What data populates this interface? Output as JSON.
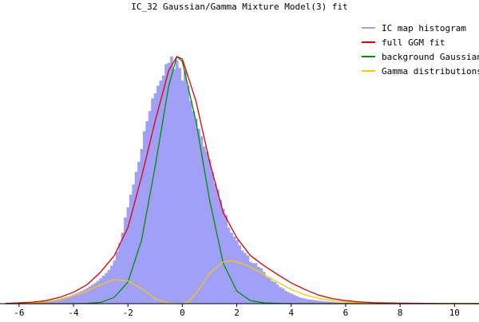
{
  "chart_data": {
    "type": "area",
    "title": "IC_32 Gaussian/Gamma Mixture Model(3) fit",
    "xlabel": "",
    "ylabel": "",
    "xlim": [
      -6.7,
      10.9
    ],
    "ylim": [
      0,
      1.0
    ],
    "x_ticks": [
      -6,
      -4,
      -2,
      0,
      2,
      4,
      6,
      8,
      10
    ],
    "x_tick_labels": [
      "-6",
      "-4",
      "-2",
      "0",
      "2",
      "4",
      "6",
      "8",
      "10"
    ],
    "legend_position": "top-right",
    "colors": {
      "histogram": "#a0a0f8",
      "full_fit": "#e00000",
      "background": "#009000",
      "gamma": "#f8c800",
      "axis": "#000000"
    },
    "series": [
      {
        "name": "IC map histogram",
        "kind": "histogram",
        "bin_width": 0.1,
        "x": [
          -6.3,
          -6.2,
          -6.1,
          -6.0,
          -5.9,
          -5.8,
          -5.7,
          -5.6,
          -5.5,
          -5.4,
          -5.3,
          -5.2,
          -5.1,
          -5.0,
          -4.9,
          -4.8,
          -4.7,
          -4.6,
          -4.5,
          -4.4,
          -4.3,
          -4.2,
          -4.1,
          -4.0,
          -3.9,
          -3.8,
          -3.7,
          -3.6,
          -3.5,
          -3.4,
          -3.3,
          -3.2,
          -3.1,
          -3.0,
          -2.9,
          -2.8,
          -2.7,
          -2.6,
          -2.5,
          -2.4,
          -2.3,
          -2.2,
          -2.1,
          -2.0,
          -1.9,
          -1.8,
          -1.7,
          -1.6,
          -1.5,
          -1.4,
          -1.3,
          -1.2,
          -1.1,
          -1.0,
          -0.9,
          -0.8,
          -0.7,
          -0.6,
          -0.5,
          -0.4,
          -0.3,
          -0.2,
          -0.1,
          0.0,
          0.1,
          0.2,
          0.3,
          0.4,
          0.5,
          0.6,
          0.7,
          0.8,
          0.9,
          1.0,
          1.1,
          1.2,
          1.3,
          1.4,
          1.5,
          1.6,
          1.7,
          1.8,
          1.9,
          2.0,
          2.1,
          2.2,
          2.3,
          2.4,
          2.5,
          2.6,
          2.7,
          2.8,
          2.9,
          3.0,
          3.1,
          3.2,
          3.3,
          3.4,
          3.5,
          3.6,
          3.7,
          3.8,
          3.9,
          4.0,
          4.1,
          4.2,
          4.3,
          4.4,
          4.5,
          4.6,
          4.7,
          4.8,
          4.9,
          5.0,
          5.1,
          5.2,
          5.3,
          5.4,
          5.5,
          5.6,
          5.7,
          5.8,
          5.9,
          6.0,
          6.1,
          6.2,
          6.3,
          6.4,
          6.5,
          6.6,
          6.7,
          6.8,
          6.9,
          7.0
        ],
        "values": [
          0.002,
          0.002,
          0.003,
          0.003,
          0.003,
          0.004,
          0.004,
          0.005,
          0.005,
          0.006,
          0.007,
          0.008,
          0.009,
          0.01,
          0.011,
          0.013,
          0.015,
          0.017,
          0.019,
          0.022,
          0.025,
          0.028,
          0.032,
          0.036,
          0.04,
          0.045,
          0.05,
          0.055,
          0.061,
          0.068,
          0.075,
          0.082,
          0.09,
          0.1,
          0.11,
          0.121,
          0.133,
          0.15,
          0.17,
          0.205,
          0.24,
          0.28,
          0.34,
          0.38,
          0.43,
          0.47,
          0.52,
          0.56,
          0.61,
          0.68,
          0.72,
          0.76,
          0.81,
          0.83,
          0.86,
          0.88,
          0.9,
          0.945,
          0.95,
          0.975,
          0.925,
          0.96,
          0.93,
          0.88,
          0.92,
          0.86,
          0.8,
          0.76,
          0.73,
          0.69,
          0.66,
          0.62,
          0.6,
          0.57,
          0.52,
          0.475,
          0.45,
          0.41,
          0.375,
          0.35,
          0.3,
          0.28,
          0.265,
          0.25,
          0.23,
          0.21,
          0.2,
          0.19,
          0.165,
          0.16,
          0.16,
          0.145,
          0.14,
          0.125,
          0.105,
          0.1,
          0.09,
          0.085,
          0.075,
          0.065,
          0.06,
          0.05,
          0.045,
          0.04,
          0.035,
          0.03,
          0.025,
          0.022,
          0.02,
          0.017,
          0.016,
          0.015,
          0.013,
          0.012,
          0.011,
          0.01,
          0.009,
          0.008,
          0.007,
          0.006,
          0.005,
          0.005,
          0.004,
          0.004,
          0.004,
          0.003,
          0.003,
          0.003,
          0.003,
          0.002,
          0.002,
          0.002,
          0.002,
          0.002
        ]
      },
      {
        "name": "full GGM fit",
        "kind": "line",
        "x": [
          -6.5,
          -6.0,
          -5.5,
          -5.0,
          -4.5,
          -4.0,
          -3.5,
          -3.0,
          -2.5,
          -2.0,
          -1.5,
          -1.0,
          -0.5,
          -0.2,
          0.0,
          0.5,
          1.0,
          1.5,
          2.0,
          2.5,
          3.0,
          3.5,
          4.0,
          4.5,
          5.0,
          5.5,
          6.0,
          6.5,
          7.0,
          8.0,
          9.0,
          10.0,
          10.9
        ],
        "values": [
          0.001,
          0.003,
          0.006,
          0.012,
          0.025,
          0.045,
          0.075,
          0.125,
          0.19,
          0.3,
          0.5,
          0.72,
          0.92,
          0.975,
          0.965,
          0.8,
          0.56,
          0.36,
          0.26,
          0.19,
          0.15,
          0.115,
          0.082,
          0.056,
          0.034,
          0.02,
          0.012,
          0.007,
          0.004,
          0.002,
          0.001,
          0.0005,
          0.0002
        ]
      },
      {
        "name": "background Gaussian",
        "kind": "line",
        "x": [
          -6.5,
          -6.0,
          -5.5,
          -5.0,
          -4.5,
          -4.0,
          -3.5,
          -3.0,
          -2.5,
          -2.0,
          -1.5,
          -1.0,
          -0.5,
          -0.2,
          0.0,
          0.5,
          1.0,
          1.5,
          2.0,
          2.5,
          3.0,
          3.5,
          4.0,
          4.5,
          5.0,
          6.0,
          8.0,
          10.9
        ],
        "values": [
          0,
          0,
          0,
          0,
          0,
          0,
          0.001,
          0.005,
          0.025,
          0.085,
          0.25,
          0.54,
          0.86,
          0.975,
          0.955,
          0.72,
          0.41,
          0.16,
          0.05,
          0.012,
          0.003,
          0.001,
          0,
          0,
          0,
          0,
          0,
          0
        ]
      },
      {
        "name": "Gamma distributions",
        "kind": "line",
        "x": [
          -6.5,
          -6.0,
          -5.5,
          -5.0,
          -4.5,
          -4.0,
          -3.5,
          -3.0,
          -2.5,
          -2.0,
          -1.5,
          -1.0,
          -0.5,
          -0.2,
          0.0,
          0.2,
          0.5,
          1.0,
          1.5,
          1.8,
          2.0,
          2.5,
          3.0,
          3.5,
          4.0,
          4.5,
          5.0,
          5.5,
          6.0,
          6.5,
          7.0,
          8.0,
          10.9
        ],
        "values": [
          0.001,
          0.002,
          0.004,
          0.008,
          0.016,
          0.03,
          0.05,
          0.075,
          0.095,
          0.09,
          0.06,
          0.02,
          0.002,
          0,
          0,
          0.005,
          0.04,
          0.12,
          0.165,
          0.17,
          0.165,
          0.145,
          0.115,
          0.085,
          0.056,
          0.035,
          0.021,
          0.012,
          0.007,
          0.004,
          0.002,
          0.001,
          0.0002
        ]
      }
    ]
  }
}
